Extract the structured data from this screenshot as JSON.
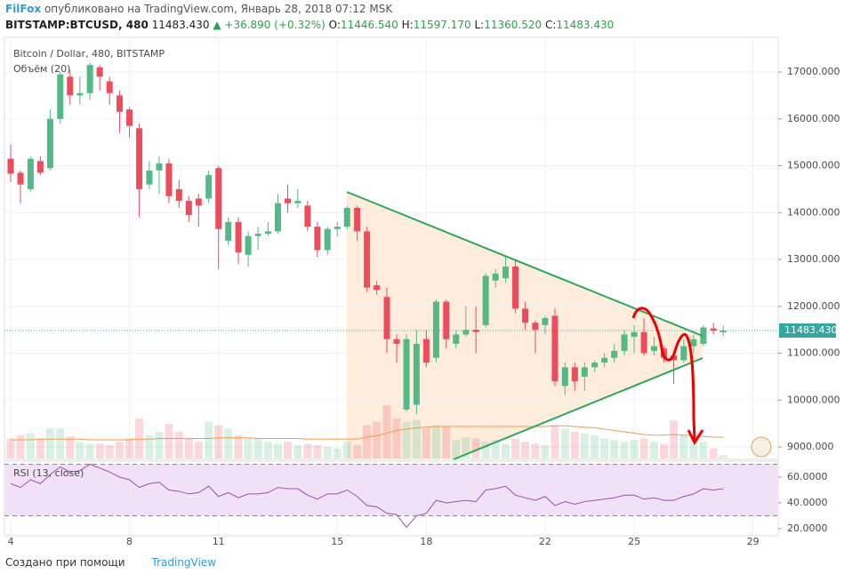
{
  "header": {
    "author": "FilFox",
    "published": "опубликовано на TradingView.com, Январь 28, 2018 07:12 MSK",
    "symbol": "BITSTAMP:BTCUSD, 480",
    "last": "11483.430",
    "change": "▲ +36.890 (+0.32%)",
    "o_label": "O:",
    "open": "11446.540",
    "h_label": "H:",
    "high": "11597.170",
    "l_label": "L:",
    "low": "11360.520",
    "c_label": "C:",
    "close": "11483.430"
  },
  "footer": {
    "made_with": "Создано при помощи",
    "brand": "TradingView"
  },
  "chart_data": {
    "type": "candlestick",
    "title": "Bitcoin / Dollar, 480, BITSTAMP",
    "volume_label": "Объём (20)",
    "up_color": "#53b987",
    "down_color": "#eb4d5c",
    "volume_ma_color": "#f39a4e",
    "grid": true,
    "x": [
      4,
      4.33,
      4.67,
      5,
      5.33,
      5.67,
      6,
      6.33,
      6.67,
      7,
      7.33,
      7.67,
      8,
      8.33,
      8.67,
      9,
      9.33,
      9.67,
      10,
      10.33,
      10.67,
      11,
      11.33,
      11.67,
      12,
      12.33,
      12.67,
      13,
      13.33,
      13.67,
      14,
      14.33,
      14.67,
      15,
      15.33,
      15.67,
      16,
      16.33,
      16.67,
      17,
      17.33,
      17.67,
      18,
      18.33,
      18.67,
      19,
      19.33,
      19.67,
      20,
      20.33,
      20.67,
      21,
      21.33,
      21.67,
      22,
      22.33,
      22.67,
      23,
      23.33,
      23.67,
      24,
      24.33,
      24.67,
      25,
      25.33,
      25.67,
      26,
      26.33,
      26.67,
      27,
      27.33,
      27.67,
      28
    ],
    "open": [
      15150,
      14850,
      14500,
      15100,
      14950,
      16000,
      16900,
      16500,
      16550,
      17100,
      16800,
      16500,
      16200,
      15800,
      14600,
      14900,
      15050,
      14500,
      14250,
      14300,
      14300,
      14950,
      13400,
      13800,
      13100,
      13500,
      13550,
      13600,
      14300,
      14200,
      14150,
      13700,
      13200,
      13650,
      13700,
      14100,
      13600,
      12450,
      12200,
      11300,
      9800,
      9900,
      11300,
      10900,
      12100,
      11200,
      11400,
      11500,
      11600,
      12550,
      12600,
      12850,
      11950,
      11650,
      11600,
      11800,
      10300,
      10700,
      10500,
      10700,
      10800,
      10900,
      11050,
      11350,
      11450,
      11050,
      11100,
      10950,
      10850,
      11150,
      11200,
      11530,
      11446.54
    ],
    "high": [
      15450,
      14900,
      15200,
      15200,
      16200,
      17000,
      17050,
      16900,
      17200,
      17150,
      16900,
      16600,
      16250,
      15900,
      15100,
      15200,
      15150,
      14700,
      14350,
      14400,
      14900,
      15000,
      13900,
      13900,
      13600,
      13700,
      13800,
      14400,
      14600,
      14500,
      14250,
      13800,
      13700,
      13800,
      14150,
      14150,
      13700,
      12550,
      12400,
      11400,
      11400,
      11500,
      11500,
      12150,
      12150,
      11500,
      12000,
      12000,
      12700,
      12800,
      13050,
      13000,
      12100,
      11700,
      11800,
      11950,
      10800,
      10800,
      10800,
      10850,
      11000,
      11200,
      11500,
      11600,
      11750,
      11350,
      11150,
      11000,
      11300,
      11400,
      11600,
      11650,
      11597.17
    ],
    "low": [
      14650,
      14200,
      14450,
      14800,
      14900,
      15900,
      16300,
      16300,
      16400,
      16600,
      16300,
      15700,
      15600,
      13900,
      14500,
      14400,
      14200,
      14100,
      13800,
      13700,
      14200,
      12800,
      13300,
      12900,
      12850,
      13200,
      13500,
      13550,
      14000,
      14100,
      13600,
      13050,
      13100,
      13500,
      13650,
      13400,
      12300,
      12250,
      11000,
      10800,
      9750,
      9700,
      10700,
      10800,
      11100,
      11100,
      11350,
      11000,
      11550,
      12400,
      12500,
      11850,
      11500,
      11000,
      11400,
      10300,
      10100,
      10200,
      10200,
      10600,
      10700,
      10800,
      10950,
      11000,
      10950,
      10950,
      10800,
      10350,
      10800,
      11000,
      11150,
      11400,
      11360.52
    ],
    "close": [
      14830,
      14600,
      15150,
      14850,
      16000,
      16950,
      16500,
      16550,
      17150,
      16900,
      16550,
      16150,
      15850,
      14500,
      14900,
      15050,
      14350,
      14250,
      13950,
      14150,
      14800,
      13650,
      13800,
      13150,
      13500,
      13550,
      13600,
      14200,
      14200,
      14250,
      13700,
      13200,
      13650,
      13700,
      14100,
      13600,
      12400,
      12350,
      11300,
      11200,
      11300,
      11200,
      10800,
      12100,
      11300,
      11400,
      11500,
      11450,
      12650,
      12700,
      12850,
      11950,
      11650,
      11500,
      11750,
      10400,
      10700,
      10400,
      10700,
      10800,
      10900,
      11050,
      11400,
      11450,
      11000,
      11150,
      10900,
      10850,
      11150,
      11300,
      11550,
      11480,
      11483.43
    ],
    "volume": [
      30,
      35,
      38,
      30,
      45,
      45,
      33,
      25,
      22,
      22,
      20,
      25,
      30,
      60,
      35,
      40,
      52,
      40,
      30,
      25,
      55,
      50,
      45,
      35,
      30,
      30,
      25,
      22,
      25,
      20,
      22,
      20,
      18,
      15,
      25,
      20,
      50,
      55,
      80,
      60,
      55,
      58,
      45,
      50,
      48,
      28,
      32,
      30,
      25,
      28,
      22,
      30,
      25,
      22,
      20,
      50,
      45,
      40,
      38,
      35,
      30,
      28,
      25,
      28,
      30,
      25,
      22,
      57,
      35,
      30,
      25,
      15,
      5
    ],
    "volume_ma": [
      28,
      28,
      28,
      29,
      29,
      29,
      29,
      29,
      28,
      28,
      28,
      28,
      28,
      29,
      29,
      30,
      30,
      30,
      30,
      30,
      30,
      31,
      31,
      31,
      31,
      30,
      30,
      30,
      30,
      30,
      29,
      29,
      29,
      29,
      29,
      29,
      32,
      34,
      38,
      42,
      44,
      46,
      47,
      48,
      48,
      48,
      48,
      48,
      48,
      48,
      48,
      48,
      48,
      48,
      48,
      49,
      49,
      48,
      47,
      46,
      44,
      42,
      40,
      38,
      36,
      35,
      35,
      36,
      35,
      34,
      33,
      32,
      32
    ],
    "xlim": [
      3.79,
      29.85
    ],
    "xticks": [
      4,
      8,
      11,
      15,
      18,
      22,
      25,
      29
    ],
    "ylim": [
      8735,
      17740
    ],
    "yticks": [
      {
        "value": 9000,
        "label": "9000.000"
      },
      {
        "value": 10000,
        "label": "10000.000"
      },
      {
        "value": 11000,
        "label": "11000.000"
      },
      {
        "value": 12000,
        "label": "12000.000"
      },
      {
        "value": 13000,
        "label": "13000.000"
      },
      {
        "value": 14000,
        "label": "14000.000"
      },
      {
        "value": 15000,
        "label": "15000.000"
      },
      {
        "value": 16000,
        "label": "16000.000"
      },
      {
        "value": 17000,
        "label": "17000.000"
      }
    ],
    "last_price": {
      "value": 11483.43,
      "label": "11483.430"
    },
    "last_price_color": "#34a7a0",
    "rsi": {
      "label": "RSI (13, close)",
      "color": "#9c4fb0",
      "band_color": "#f1e1f7",
      "values": [
        55,
        52,
        58,
        55,
        62,
        68,
        64,
        65,
        70,
        67,
        64,
        60,
        58,
        52,
        55,
        56,
        50,
        49,
        47,
        48,
        53,
        45,
        48,
        44,
        47,
        47,
        48,
        52,
        51,
        51,
        46,
        43,
        47,
        47,
        50,
        45,
        38,
        37,
        32,
        31,
        21,
        30,
        32,
        42,
        40,
        41,
        42,
        41,
        50,
        51,
        53,
        46,
        44,
        42,
        45,
        38,
        41,
        39,
        41,
        42,
        43,
        44,
        46,
        46,
        43,
        44,
        42,
        42,
        45,
        47,
        51,
        50,
        51
      ],
      "ylim": [
        14.5,
        72.4
      ],
      "bands": [
        30,
        70
      ],
      "yticks": [
        {
          "value": 20,
          "label": "20.0000"
        },
        {
          "value": 40,
          "label": "40.0000"
        },
        {
          "value": 60,
          "label": "60.0000"
        }
      ]
    }
  }
}
